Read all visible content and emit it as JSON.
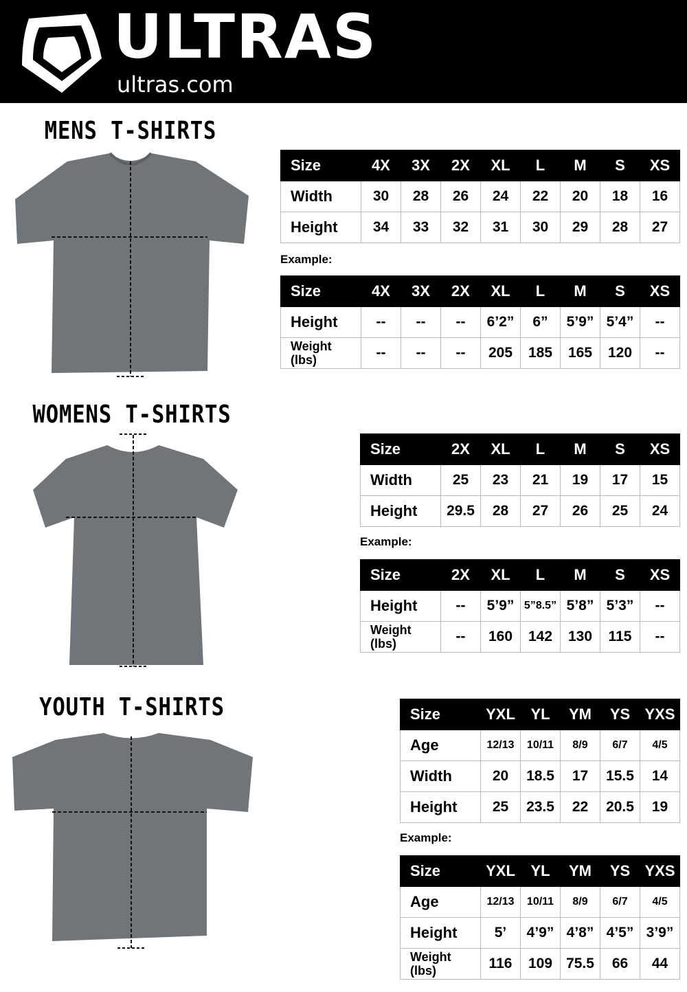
{
  "brand": {
    "name": "ULTRAS",
    "site": "ultras.com"
  },
  "colors": {
    "header": "#000000",
    "shirt": "#6f7578",
    "table_header": "#000000"
  },
  "sections": [
    {
      "title": "MENS T-SHIRTS",
      "example_label": "Example:",
      "size_table": {
        "header": [
          "Size",
          "4X",
          "3X",
          "2X",
          "XL",
          "L",
          "M",
          "S",
          "XS"
        ],
        "rows": [
          [
            "Width",
            "30",
            "28",
            "26",
            "24",
            "22",
            "20",
            "18",
            "16"
          ],
          [
            "Height",
            "34",
            "33",
            "32",
            "31",
            "30",
            "29",
            "28",
            "27"
          ]
        ]
      },
      "example_table": {
        "header": [
          "Size",
          "4X",
          "3X",
          "2X",
          "XL",
          "L",
          "M",
          "S",
          "XS"
        ],
        "rows": [
          [
            "Height",
            "--",
            "--",
            "--",
            "6’2”",
            "6”",
            "5’9”",
            "5’4”",
            "--"
          ],
          [
            "Weight (lbs)",
            "--",
            "--",
            "--",
            "205",
            "185",
            "165",
            "120",
            "--"
          ]
        ]
      }
    },
    {
      "title": "WOMENS T-SHIRTS",
      "example_label": "Example:",
      "size_table": {
        "header": [
          "Size",
          "2X",
          "XL",
          "L",
          "M",
          "S",
          "XS"
        ],
        "rows": [
          [
            "Width",
            "25",
            "23",
            "21",
            "19",
            "17",
            "15"
          ],
          [
            "Height",
            "29.5",
            "28",
            "27",
            "26",
            "25",
            "24"
          ]
        ]
      },
      "example_table": {
        "header": [
          "Size",
          "2X",
          "XL",
          "L",
          "M",
          "S",
          "XS"
        ],
        "rows": [
          [
            "Height",
            "--",
            "5’9”",
            "5”8.5”",
            "5’8”",
            "5’3”",
            "--"
          ],
          [
            "Weight (lbs)",
            "--",
            "160",
            "142",
            "130",
            "115",
            "--"
          ]
        ]
      }
    },
    {
      "title": "YOUTH T-SHIRTS",
      "example_label": "Example:",
      "size_table": {
        "header": [
          "Size",
          "YXL",
          "YL",
          "YM",
          "YS",
          "YXS"
        ],
        "rows": [
          [
            "Age",
            "12/13",
            "10/11",
            "8/9",
            "6/7",
            "4/5"
          ],
          [
            "Width",
            "20",
            "18.5",
            "17",
            "15.5",
            "14"
          ],
          [
            "Height",
            "25",
            "23.5",
            "22",
            "20.5",
            "19"
          ]
        ]
      },
      "example_table": {
        "header": [
          "Size",
          "YXL",
          "YL",
          "YM",
          "YS",
          "YXS"
        ],
        "rows": [
          [
            "Age",
            "12/13",
            "10/11",
            "8/9",
            "6/7",
            "4/5"
          ],
          [
            "Height",
            "5’",
            "4’9”",
            "4’8”",
            "4’5”",
            "3’9”"
          ],
          [
            "Weight (lbs)",
            "116",
            "109",
            "75.5",
            "66",
            "44"
          ]
        ]
      }
    }
  ]
}
